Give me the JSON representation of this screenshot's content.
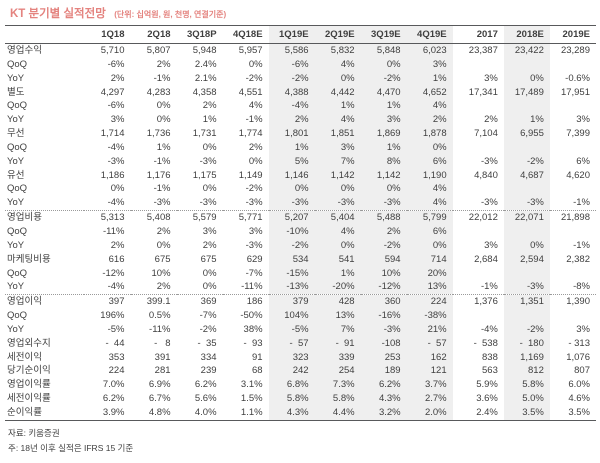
{
  "title": "KT 분기별 실적전망",
  "title_unit": "(단위: 십억원, 원, 천명, 연결기준)",
  "colors": {
    "title": "#e4837f",
    "rule": "#58595b",
    "shade": "#efefef",
    "text": "#3f3f3f",
    "dotted_rule": "#9a9a9a"
  },
  "columns": [
    "1Q18",
    "2Q18",
    "3Q18P",
    "4Q18E",
    "1Q19E",
    "2Q19E",
    "3Q19E",
    "4Q19E",
    "2017",
    "2018E",
    "2019E"
  ],
  "columns_shaded": [
    false,
    false,
    false,
    false,
    true,
    true,
    true,
    true,
    false,
    true,
    false
  ],
  "rows": [
    {
      "label": "영업수익",
      "indent": 0,
      "sep": "",
      "values": [
        "5,710",
        "5,807",
        "5,948",
        "5,957",
        "5,586",
        "5,832",
        "5,848",
        "6,023",
        "23,387",
        "23,422",
        "23,289"
      ]
    },
    {
      "label": "QoQ",
      "indent": 2,
      "sep": "",
      "values": [
        "-6%",
        "2%",
        "2.4%",
        "0%",
        "-6%",
        "4%",
        "0%",
        "3%",
        "",
        "",
        ""
      ]
    },
    {
      "label": "YoY",
      "indent": 2,
      "sep": "",
      "values": [
        "2%",
        "-1%",
        "2.1%",
        "-2%",
        "-2%",
        "0%",
        "-2%",
        "1%",
        "3%",
        "0%",
        "-0.6%"
      ]
    },
    {
      "label": "별도",
      "indent": 1,
      "sep": "",
      "values": [
        "4,297",
        "4,283",
        "4,358",
        "4,551",
        "4,388",
        "4,442",
        "4,470",
        "4,652",
        "17,341",
        "17,489",
        "17,951"
      ]
    },
    {
      "label": "QoQ",
      "indent": 2,
      "sep": "",
      "values": [
        "-6%",
        "0%",
        "2%",
        "4%",
        "-4%",
        "1%",
        "1%",
        "4%",
        "",
        "",
        ""
      ]
    },
    {
      "label": "YoY",
      "indent": 2,
      "sep": "",
      "values": [
        "3%",
        "0%",
        "1%",
        "-1%",
        "2%",
        "4%",
        "3%",
        "2%",
        "2%",
        "1%",
        "3%"
      ]
    },
    {
      "label": "무선",
      "indent": 1,
      "sep": "",
      "values": [
        "1,714",
        "1,736",
        "1,731",
        "1,774",
        "1,801",
        "1,851",
        "1,869",
        "1,878",
        "7,104",
        "6,955",
        "7,399"
      ]
    },
    {
      "label": "QoQ",
      "indent": 2,
      "sep": "",
      "values": [
        "-4%",
        "1%",
        "0%",
        "2%",
        "1%",
        "3%",
        "1%",
        "0%",
        "",
        "",
        ""
      ]
    },
    {
      "label": "YoY",
      "indent": 2,
      "sep": "",
      "values": [
        "-3%",
        "-1%",
        "-3%",
        "0%",
        "5%",
        "7%",
        "8%",
        "6%",
        "-3%",
        "-2%",
        "6%"
      ]
    },
    {
      "label": "유선",
      "indent": 1,
      "sep": "",
      "values": [
        "1,186",
        "1,176",
        "1,175",
        "1,149",
        "1,146",
        "1,142",
        "1,142",
        "1,190",
        "4,840",
        "4,687",
        "4,620"
      ]
    },
    {
      "label": "QoQ",
      "indent": 2,
      "sep": "",
      "values": [
        "0%",
        "-1%",
        "0%",
        "-2%",
        "0%",
        "0%",
        "0%",
        "4%",
        "",
        "",
        ""
      ]
    },
    {
      "label": "YoY",
      "indent": 2,
      "sep": "",
      "values": [
        "-4%",
        "-3%",
        "-3%",
        "-3%",
        "-3%",
        "-3%",
        "-3%",
        "4%",
        "-3%",
        "-3%",
        "-1%"
      ]
    },
    {
      "label": "영업비용",
      "indent": 0,
      "sep": "dotted",
      "values": [
        "5,313",
        "5,408",
        "5,579",
        "5,771",
        "5,207",
        "5,404",
        "5,488",
        "5,799",
        "22,012",
        "22,071",
        "21,898"
      ]
    },
    {
      "label": "QoQ",
      "indent": 2,
      "sep": "",
      "values": [
        "-11%",
        "2%",
        "3%",
        "3%",
        "-10%",
        "4%",
        "2%",
        "6%",
        "",
        "",
        ""
      ]
    },
    {
      "label": "YoY",
      "indent": 2,
      "sep": "",
      "values": [
        "2%",
        "0%",
        "2%",
        "-3%",
        "-2%",
        "0%",
        "-2%",
        "0%",
        "3%",
        "0%",
        "-1%"
      ]
    },
    {
      "label": "마케팅비용",
      "indent": 1,
      "sep": "",
      "values": [
        "616",
        "675",
        "675",
        "629",
        "534",
        "541",
        "594",
        "714",
        "2,684",
        "2,594",
        "2,382"
      ]
    },
    {
      "label": "QoQ",
      "indent": 2,
      "sep": "",
      "values": [
        "-12%",
        "10%",
        "0%",
        "-7%",
        "-15%",
        "1%",
        "10%",
        "20%",
        "",
        "",
        ""
      ]
    },
    {
      "label": "YoY",
      "indent": 2,
      "sep": "",
      "values": [
        "-4%",
        "2%",
        "0%",
        "-11%",
        "-13%",
        "-20%",
        "-12%",
        "13%",
        "-1%",
        "-3%",
        "-8%"
      ]
    },
    {
      "label": "영업이익",
      "indent": 0,
      "sep": "dotted",
      "values": [
        "397",
        "399.1",
        "369",
        "186",
        "379",
        "428",
        "360",
        "224",
        "1,376",
        "1,351",
        "1,390"
      ]
    },
    {
      "label": "QoQ",
      "indent": 2,
      "sep": "",
      "values": [
        "196%",
        "0.5%",
        "-7%",
        "-50%",
        "104%",
        "13%",
        "-16%",
        "-38%",
        "",
        "",
        ""
      ]
    },
    {
      "label": "YoY",
      "indent": 2,
      "sep": "",
      "values": [
        "-5%",
        "-11%",
        "-2%",
        "38%",
        "-5%",
        "7%",
        "-3%",
        "21%",
        "-4%",
        "-2%",
        "3%"
      ]
    },
    {
      "label": "영업외수지",
      "indent": 0,
      "sep": "",
      "values": [
        "-  44",
        "-   8",
        "-  35",
        "-  93",
        "-  57",
        "-  91",
        "-108",
        "-  57",
        "-  538",
        "-  180",
        "- 313"
      ]
    },
    {
      "label": "세전이익",
      "indent": 0,
      "sep": "",
      "values": [
        "353",
        "391",
        "334",
        "91",
        "323",
        "339",
        "253",
        "162",
        "838",
        "1,169",
        "1,076"
      ]
    },
    {
      "label": "당기순이익",
      "indent": 0,
      "sep": "",
      "values": [
        "224",
        "281",
        "239",
        "68",
        "242",
        "254",
        "189",
        "121",
        "563",
        "812",
        "807"
      ]
    },
    {
      "label": "영업이익률",
      "indent": 1,
      "sep": "",
      "values": [
        "7.0%",
        "6.9%",
        "6.2%",
        "3.1%",
        "6.8%",
        "7.3%",
        "6.2%",
        "3.7%",
        "5.9%",
        "5.8%",
        "6.0%"
      ]
    },
    {
      "label": "세전이익률",
      "indent": 1,
      "sep": "",
      "values": [
        "6.2%",
        "6.7%",
        "5.6%",
        "1.5%",
        "5.8%",
        "5.8%",
        "4.3%",
        "2.7%",
        "3.6%",
        "5.0%",
        "4.6%"
      ]
    },
    {
      "label": "순이익률",
      "indent": 1,
      "sep": "",
      "values": [
        "3.9%",
        "4.8%",
        "4.0%",
        "1.1%",
        "4.3%",
        "4.4%",
        "3.2%",
        "2.0%",
        "2.4%",
        "3.5%",
        "3.5%"
      ]
    }
  ],
  "footnotes": {
    "source": "자료: 키움증권",
    "note": "주: 18년 이후 실적은 IFRS 15 기준"
  }
}
